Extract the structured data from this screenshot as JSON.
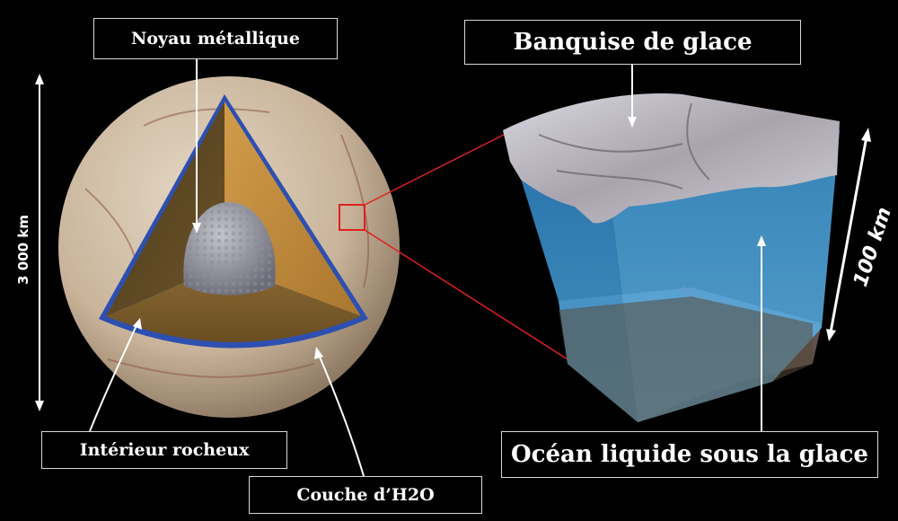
{
  "labels": {
    "core": "Noyau métallique",
    "ice_shelf": "Banquise de glace",
    "rocky_interior": "Intérieur rocheux",
    "water_layer": "Couche d’H2O",
    "ocean": "Océan liquide sous la glace"
  },
  "dimensions": {
    "diameter": "3 000 km",
    "ice_ocean_depth": "100 km"
  },
  "colors": {
    "background": "#000000",
    "ocean_blue": "#3f9fd8",
    "ice": "#b8b8c4",
    "rock": "#8a6a34",
    "mantle": "#c7913e",
    "surface": "#cdb9a0",
    "zoom_lines": "#e02020",
    "water_layer_edge": "#2d4fb0"
  }
}
